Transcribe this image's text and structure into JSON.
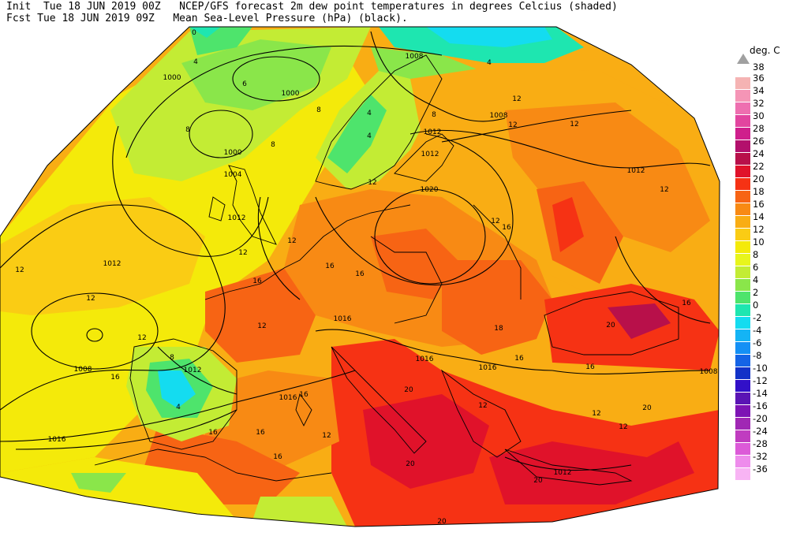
{
  "header": {
    "init_line": "Init  Tue 18 JUN 2019 00Z   NCEP/GFS forecast 2m dew point temperatures in degrees Celcius (shaded)",
    "fcst_line": "Fcst Tue 18 JUN 2019 09Z   Mean Sea-Level Pressure (hPa) (black)."
  },
  "legend": {
    "title": "deg. C",
    "entries": [
      {
        "label": "38",
        "color": "#a0a0a0"
      },
      {
        "label": "36",
        "color": "#f5b3b3"
      },
      {
        "label": "34",
        "color": "#f595b6"
      },
      {
        "label": "32",
        "color": "#ee6fb0"
      },
      {
        "label": "30",
        "color": "#e2459f"
      },
      {
        "label": "28",
        "color": "#cf1f8c"
      },
      {
        "label": "26",
        "color": "#b3106c"
      },
      {
        "label": "24",
        "color": "#b8104a"
      },
      {
        "label": "22",
        "color": "#e0122a"
      },
      {
        "label": "20",
        "color": "#f63214"
      },
      {
        "label": "18",
        "color": "#f76414"
      },
      {
        "label": "16",
        "color": "#f88a14"
      },
      {
        "label": "14",
        "color": "#f9ad14"
      },
      {
        "label": "12",
        "color": "#facc14"
      },
      {
        "label": "10",
        "color": "#f4ea0a"
      },
      {
        "label": "8",
        "color": "#e8f51c"
      },
      {
        "label": "6",
        "color": "#c3ec34"
      },
      {
        "label": "4",
        "color": "#8ae64a"
      },
      {
        "label": "2",
        "color": "#4ee46c"
      },
      {
        "label": "0",
        "color": "#1ee6b0"
      },
      {
        "label": "-2",
        "color": "#14dcf0"
      },
      {
        "label": "-4",
        "color": "#14b4f5"
      },
      {
        "label": "-6",
        "color": "#1490f5"
      },
      {
        "label": "-8",
        "color": "#1464e6"
      },
      {
        "label": "-10",
        "color": "#1232c8"
      },
      {
        "label": "-12",
        "color": "#3210c8"
      },
      {
        "label": "-14",
        "color": "#5a14b4"
      },
      {
        "label": "-16",
        "color": "#7d14b4"
      },
      {
        "label": "-20",
        "color": "#a028b4"
      },
      {
        "label": "-24",
        "color": "#c03cc0"
      },
      {
        "label": "-28",
        "color": "#dc5ad8"
      },
      {
        "label": "-32",
        "color": "#ee8cec"
      },
      {
        "label": "-36",
        "color": "#f8b4f4"
      }
    ]
  },
  "map": {
    "isobar_labels": [
      "1000",
      "1000",
      "1000",
      "1004",
      "1008",
      "1008",
      "1008",
      "1008",
      "1012",
      "1012",
      "1012",
      "1012",
      "1012",
      "1012",
      "1012",
      "1016",
      "1016",
      "1016",
      "1016",
      "1016",
      "1020"
    ],
    "dewpoint_labels": [
      "0",
      "4",
      "4",
      "4",
      "4",
      "4",
      "6",
      "8",
      "8",
      "8",
      "8",
      "8",
      "12",
      "12",
      "12",
      "12",
      "12",
      "12",
      "12",
      "12",
      "12",
      "12",
      "12",
      "12",
      "12",
      "12",
      "12",
      "12",
      "16",
      "16",
      "16",
      "16",
      "16",
      "16",
      "16",
      "16",
      "16",
      "16",
      "16",
      "16",
      "18",
      "20",
      "20",
      "20",
      "20",
      "20",
      "20"
    ]
  }
}
